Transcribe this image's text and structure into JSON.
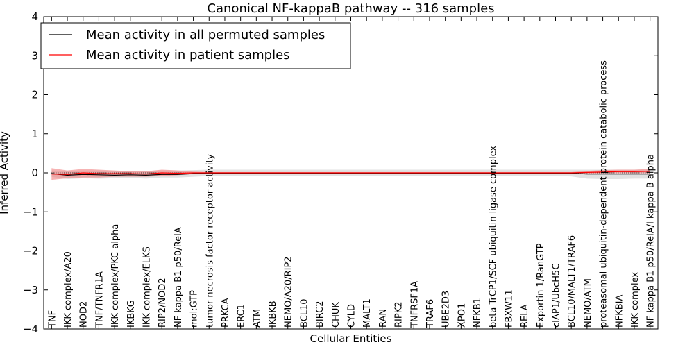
{
  "chart_data": {
    "type": "line",
    "title": "Canonical NF-kappaB pathway -- 316 samples",
    "xlabel": "Cellular Entities",
    "ylabel": "Inferred Activity",
    "ylim": [
      -4,
      4
    ],
    "yticks": [
      -4,
      -3,
      -2,
      -1,
      0,
      1,
      2,
      3,
      4
    ],
    "grid": false,
    "legend_position": "top-left",
    "categories": [
      "TNF",
      "IKK complex/A20",
      "NOD2",
      "TNF/TNFR1A",
      "IKK complex/PKC alpha",
      "IKBKG",
      "IKK complex/ELKS",
      "RIP2/NOD2",
      "NF kappa B1 p50/RelA",
      "mol:GTP",
      "tumor necrosis factor receptor activity",
      "PRKCA",
      "ERC1",
      "ATM",
      "IKBKB",
      "NEMO/A20/RIP2",
      "BCL10",
      "BIRC2",
      "CHUK",
      "CYLD",
      "MALT1",
      "RAN",
      "RIPK2",
      "TNFRSF1A",
      "TRAF6",
      "UBE2D3",
      "XPO1",
      "NFKB1",
      "beta TrCP1/SCF ubiquitin ligase complex",
      "FBXW11",
      "RELA",
      "Exportin 1/RanGTP",
      "cIAP1/UbcH5C",
      "BCL10/MALT1/TRAF6",
      "NEMO/ATM",
      "proteasomal ubiquitin-dependent protein catabolic process",
      "NFKBIA",
      "IKK complex",
      "NF kappa B1 p50/RelA/I kappa B alpha"
    ],
    "series": [
      {
        "name": "Mean activity in all permuted samples",
        "color": "#000000",
        "values": [
          -0.02,
          -0.06,
          -0.04,
          -0.05,
          -0.06,
          -0.05,
          -0.06,
          -0.04,
          -0.04,
          -0.02,
          -0.01,
          -0.01,
          -0.01,
          -0.01,
          -0.01,
          -0.01,
          -0.01,
          -0.01,
          -0.01,
          -0.01,
          -0.01,
          -0.01,
          -0.01,
          -0.01,
          -0.01,
          -0.01,
          -0.01,
          -0.01,
          -0.01,
          -0.01,
          -0.01,
          -0.01,
          -0.01,
          -0.01,
          -0.03,
          -0.03,
          -0.03,
          -0.03,
          -0.03
        ],
        "band_lower": [
          -0.1,
          -0.16,
          -0.14,
          -0.15,
          -0.14,
          -0.13,
          -0.15,
          -0.12,
          -0.12,
          -0.1,
          -0.08,
          -0.08,
          -0.08,
          -0.08,
          -0.08,
          -0.08,
          -0.08,
          -0.08,
          -0.08,
          -0.08,
          -0.08,
          -0.08,
          -0.08,
          -0.08,
          -0.08,
          -0.08,
          -0.08,
          -0.08,
          -0.08,
          -0.08,
          -0.08,
          -0.08,
          -0.08,
          -0.09,
          -0.15,
          -0.16,
          -0.16,
          -0.15,
          -0.15
        ],
        "band_upper": [
          0.06,
          0.05,
          0.06,
          0.06,
          0.05,
          0.05,
          0.05,
          0.06,
          0.06,
          0.07,
          0.08,
          0.08,
          0.08,
          0.08,
          0.08,
          0.08,
          0.08,
          0.08,
          0.08,
          0.08,
          0.08,
          0.08,
          0.08,
          0.08,
          0.08,
          0.08,
          0.08,
          0.08,
          0.08,
          0.08,
          0.08,
          0.08,
          0.08,
          0.08,
          0.08,
          0.08,
          0.08,
          0.08,
          0.08
        ],
        "band_color": "#c8c8c8"
      },
      {
        "name": "Mean activity in patient samples",
        "color": "#ff0000",
        "values": [
          -0.03,
          -0.04,
          0.0,
          -0.02,
          -0.02,
          -0.02,
          -0.03,
          0.0,
          -0.01,
          0.0,
          0.0,
          0.0,
          0.0,
          0.0,
          0.0,
          0.0,
          0.0,
          0.0,
          0.0,
          0.0,
          0.0,
          0.0,
          0.0,
          0.0,
          0.0,
          0.0,
          0.0,
          0.0,
          0.0,
          0.0,
          0.0,
          0.0,
          0.0,
          0.0,
          0.01,
          0.02,
          0.03,
          0.03,
          0.04
        ],
        "band_lower": [
          -0.18,
          -0.14,
          -0.12,
          -0.12,
          -0.1,
          -0.1,
          -0.1,
          -0.08,
          -0.06,
          -0.03,
          -0.02,
          -0.02,
          -0.02,
          -0.02,
          -0.02,
          -0.02,
          -0.02,
          -0.02,
          -0.02,
          -0.02,
          -0.02,
          -0.02,
          -0.02,
          -0.02,
          -0.02,
          -0.02,
          -0.02,
          -0.02,
          -0.02,
          -0.02,
          -0.02,
          -0.02,
          -0.02,
          -0.02,
          -0.02,
          -0.01,
          -0.01,
          -0.01,
          -0.01
        ],
        "band_upper": [
          0.12,
          0.06,
          0.1,
          0.08,
          0.06,
          0.04,
          0.04,
          0.08,
          0.06,
          0.03,
          0.02,
          0.02,
          0.02,
          0.02,
          0.02,
          0.02,
          0.02,
          0.02,
          0.02,
          0.02,
          0.02,
          0.02,
          0.02,
          0.02,
          0.02,
          0.02,
          0.02,
          0.02,
          0.02,
          0.02,
          0.02,
          0.02,
          0.02,
          0.02,
          0.05,
          0.07,
          0.08,
          0.08,
          0.1
        ],
        "band_color": "#f08080"
      }
    ]
  }
}
